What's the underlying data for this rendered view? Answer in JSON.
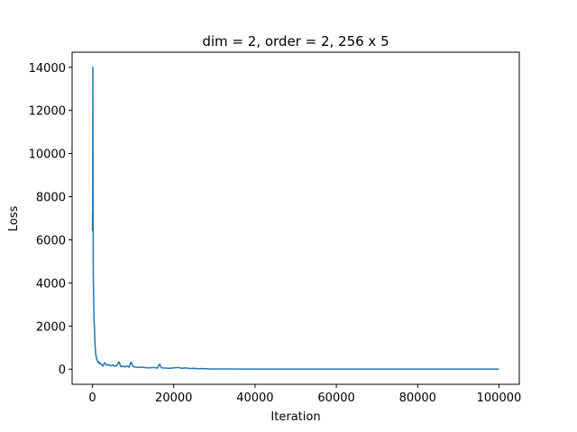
{
  "chart_data": {
    "type": "line",
    "title": "dim = 2, order = 2, 256 x 5",
    "xlabel": "Iteration",
    "ylabel": "Loss",
    "xlim": [
      -5000,
      105000
    ],
    "ylim": [
      -700,
      14700
    ],
    "xticks": [
      0,
      20000,
      40000,
      60000,
      80000,
      100000
    ],
    "yticks": [
      0,
      2000,
      4000,
      6000,
      8000,
      10000,
      12000,
      14000
    ],
    "grid": false,
    "legend": "none",
    "colors": {
      "line": "#1f77b4",
      "axes": "#000000"
    },
    "series": [
      {
        "x": [
          0,
          20,
          60,
          100,
          150,
          200,
          260,
          320,
          400,
          500,
          600,
          700,
          800,
          900,
          1000,
          1200,
          1400,
          1600,
          1800,
          2000,
          2300,
          2600,
          3000,
          3500,
          4000,
          4500,
          5000,
          5500,
          6000,
          6500,
          7000,
          7500,
          8000,
          8500,
          9000,
          9500,
          10000,
          11000,
          12000,
          13000,
          14000,
          15000,
          16000,
          16500,
          17000,
          18000,
          19000,
          20000,
          21000,
          22000,
          23000,
          24000,
          25000,
          26000,
          27000,
          28000,
          29000,
          30000,
          40000,
          50000,
          60000,
          70000,
          80000,
          90000,
          100000
        ],
        "y": [
          6400,
          7200,
          6900,
          14000,
          9000,
          4400,
          3800,
          3000,
          2200,
          2000,
          1200,
          1000,
          700,
          600,
          500,
          400,
          300,
          350,
          250,
          280,
          200,
          150,
          300,
          180,
          220,
          150,
          200,
          140,
          160,
          340,
          120,
          140,
          100,
          160,
          90,
          330,
          120,
          80,
          100,
          70,
          60,
          80,
          50,
          240,
          60,
          50,
          40,
          60,
          80,
          40,
          60,
          30,
          40,
          20,
          30,
          20,
          10,
          10,
          5,
          5,
          5,
          5,
          5,
          5,
          5
        ]
      }
    ]
  }
}
